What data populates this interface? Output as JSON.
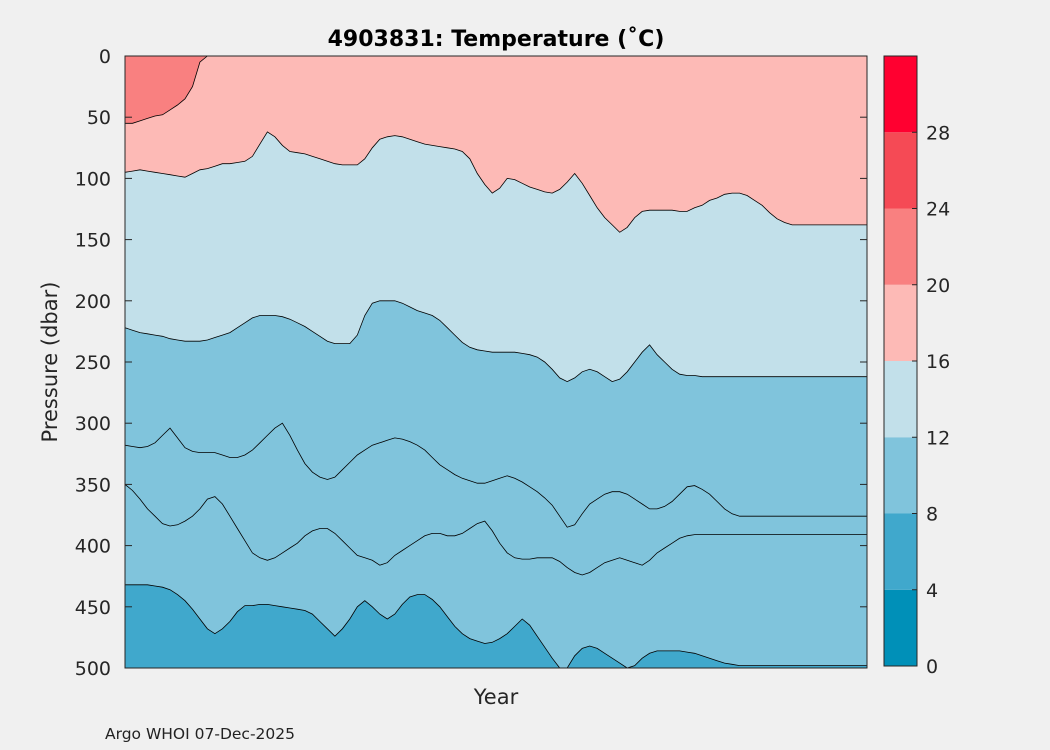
{
  "chart_data": {
    "type": "contour",
    "title": "4903831:  Temperature (˚C)",
    "xlabel": "Year",
    "ylabel": "Pressure (dbar)",
    "ylim": [
      0,
      500
    ],
    "yticks": [
      "0",
      "50",
      "100",
      "150",
      "200",
      "250",
      "300",
      "350",
      "400",
      "450",
      "500"
    ],
    "xticks": [],
    "x_profiles": 100,
    "colorbar": {
      "range": [
        0,
        32
      ],
      "levels": [
        0,
        4,
        8,
        12,
        16,
        20,
        24,
        28,
        32
      ],
      "tick_labels": [
        "0",
        "4",
        "8",
        "12",
        "16",
        "20",
        "24",
        "28"
      ],
      "colors": [
        "#0090b8",
        "#40a8cc",
        "#80c4dc",
        "#c2e0ea",
        "#fdbab6",
        "#f98080",
        "#f54a55",
        "#ff0030"
      ]
    },
    "isotherms": [
      {
        "temperature": 20,
        "depths": [
          55,
          55,
          53,
          51,
          49,
          48,
          44,
          40,
          35,
          25,
          5,
          0,
          0,
          0,
          0,
          0,
          0,
          0,
          0,
          0,
          0,
          0,
          0,
          0,
          0,
          0,
          0,
          0,
          0,
          0,
          0,
          0,
          0,
          0,
          0,
          0,
          0,
          0,
          0,
          0,
          0,
          0,
          0,
          0,
          0,
          0,
          0,
          0,
          0,
          0,
          0,
          0,
          0,
          0,
          0,
          0,
          0,
          0,
          0,
          0,
          0,
          0,
          0,
          0,
          0,
          0,
          0,
          0,
          0,
          0,
          0,
          0,
          0,
          0,
          0,
          0,
          0,
          0,
          0,
          0,
          0,
          0,
          0,
          0,
          0,
          0,
          0,
          0,
          0,
          0,
          0,
          0,
          0,
          0,
          0,
          0,
          0,
          0,
          0,
          0
        ]
      },
      {
        "temperature": 16,
        "depths": [
          95,
          94,
          93,
          94,
          95,
          96,
          97,
          98,
          99,
          96,
          93,
          92,
          90,
          88,
          88,
          87,
          86,
          82,
          72,
          62,
          66,
          73,
          78,
          79,
          80,
          82,
          84,
          86,
          88,
          89,
          89,
          89,
          84,
          75,
          68,
          66,
          65,
          66,
          68,
          70,
          72,
          73,
          74,
          75,
          76,
          78,
          84,
          96,
          105,
          112,
          108,
          100,
          101,
          104,
          107,
          109,
          111,
          112,
          109,
          103,
          96,
          104,
          114,
          124,
          132,
          138,
          144,
          140,
          132,
          127,
          126,
          126,
          126,
          126,
          127,
          127,
          124,
          122,
          118,
          116,
          113,
          112,
          112,
          114,
          118,
          122,
          128,
          133,
          136,
          138,
          138,
          138,
          138,
          138,
          138,
          138,
          138,
          138,
          138,
          138
        ]
      },
      {
        "temperature": 12,
        "depths": [
          222,
          224,
          226,
          227,
          228,
          229,
          231,
          232,
          233,
          233,
          233,
          232,
          230,
          228,
          226,
          222,
          218,
          214,
          212,
          212,
          212,
          213,
          215,
          218,
          221,
          225,
          229,
          233,
          235,
          235,
          235,
          228,
          212,
          202,
          200,
          200,
          200,
          202,
          205,
          208,
          210,
          212,
          216,
          222,
          228,
          234,
          238,
          240,
          241,
          242,
          242,
          242,
          242,
          243,
          244,
          246,
          250,
          256,
          263,
          266,
          263,
          258,
          256,
          258,
          262,
          266,
          264,
          258,
          250,
          242,
          236,
          244,
          250,
          256,
          260,
          261,
          261,
          262,
          262,
          262,
          262,
          262,
          262,
          262,
          262,
          262,
          262,
          262,
          262,
          262,
          262,
          262,
          262,
          262,
          262,
          262,
          262,
          262,
          262,
          262
        ]
      },
      {
        "temperature": 10,
        "depths": [
          318,
          319,
          320,
          319,
          316,
          310,
          304,
          312,
          320,
          323,
          324,
          324,
          324,
          326,
          328,
          328,
          326,
          322,
          316,
          310,
          304,
          300,
          310,
          322,
          333,
          340,
          344,
          346,
          344,
          338,
          332,
          326,
          322,
          318,
          316,
          314,
          312,
          313,
          315,
          318,
          322,
          328,
          334,
          338,
          342,
          345,
          347,
          349,
          349,
          347,
          345,
          343,
          345,
          348,
          352,
          356,
          361,
          367,
          376,
          385,
          383,
          374,
          366,
          362,
          358,
          356,
          356,
          358,
          362,
          366,
          370,
          370,
          368,
          364,
          358,
          352,
          351,
          354,
          358,
          364,
          370,
          374,
          376,
          376,
          376,
          376,
          376,
          376,
          376,
          376,
          376,
          376,
          376,
          376,
          376,
          376,
          376,
          376,
          376,
          376
        ]
      },
      {
        "temperature": 9,
        "depths": [
          350,
          355,
          362,
          370,
          376,
          382,
          384,
          383,
          380,
          376,
          370,
          362,
          360,
          366,
          376,
          386,
          396,
          406,
          410,
          412,
          410,
          406,
          402,
          398,
          392,
          388,
          386,
          386,
          390,
          396,
          402,
          408,
          410,
          412,
          416,
          414,
          408,
          404,
          400,
          396,
          392,
          390,
          390,
          392,
          392,
          390,
          386,
          382,
          380,
          388,
          398,
          406,
          410,
          411,
          411,
          410,
          410,
          410,
          413,
          418,
          422,
          424,
          422,
          418,
          414,
          412,
          410,
          412,
          414,
          416,
          412,
          406,
          402,
          398,
          394,
          392,
          391,
          391,
          391,
          391,
          391,
          391,
          391,
          391,
          391,
          391,
          391,
          391,
          391,
          391,
          391,
          391,
          391,
          391,
          391,
          391,
          391,
          391,
          391,
          391
        ]
      },
      {
        "temperature": 8,
        "depths": [
          432,
          432,
          432,
          432,
          433,
          434,
          436,
          440,
          445,
          452,
          460,
          468,
          472,
          468,
          462,
          454,
          449,
          449,
          448,
          448,
          449,
          450,
          451,
          452,
          453,
          456,
          462,
          468,
          474,
          468,
          460,
          450,
          445,
          450,
          456,
          460,
          456,
          448,
          442,
          440,
          440,
          444,
          450,
          458,
          466,
          472,
          476,
          478,
          480,
          479,
          476,
          472,
          466,
          460,
          465,
          474,
          483,
          492,
          500,
          500,
          490,
          484,
          482,
          484,
          488,
          492,
          496,
          500,
          498,
          492,
          488,
          486,
          486,
          486,
          486,
          487,
          488,
          490,
          492,
          494,
          496,
          497,
          498,
          498,
          498,
          498,
          498,
          498,
          498,
          498,
          498,
          498,
          498,
          498,
          498,
          498,
          498,
          498,
          498,
          498
        ]
      }
    ]
  },
  "footer": {
    "credit": "Argo WHOI 07-Dec-2025"
  }
}
